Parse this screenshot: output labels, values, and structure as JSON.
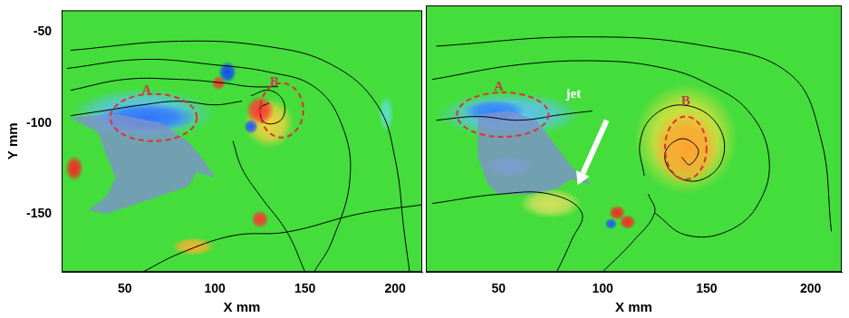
{
  "chart_data": [
    {
      "type": "streamline",
      "x_label": "X mm",
      "y_label": "Y mm",
      "xlim": [
        15,
        215
      ],
      "ylim": [
        -182,
        -38
      ],
      "xticks": [
        50,
        100,
        150,
        200
      ],
      "yticks": [
        -50,
        -100,
        -150
      ],
      "grid": false,
      "contours": [
        {
          "x": 60,
          "y": -95,
          "rx": 40,
          "ry": 14,
          "color": "#60c0ff"
        },
        {
          "x": 62,
          "y": -97,
          "rx": 28,
          "ry": 8,
          "color": "#3070ff"
        },
        {
          "x": 22,
          "y": -125,
          "rx": 5,
          "ry": 7,
          "color": "#ff2020"
        },
        {
          "x": 107,
          "y": -72,
          "rx": 5,
          "ry": 6,
          "color": "#1040ff"
        },
        {
          "x": 102,
          "y": -78,
          "rx": 4,
          "ry": 4,
          "color": "#ff3030"
        },
        {
          "x": 130,
          "y": -100,
          "rx": 14,
          "ry": 14,
          "color": "#ffd040"
        },
        {
          "x": 125,
          "y": -93,
          "rx": 8,
          "ry": 8,
          "color": "#ff3030"
        },
        {
          "x": 120,
          "y": -102,
          "rx": 4,
          "ry": 4,
          "color": "#2050ff"
        },
        {
          "x": 125,
          "y": -153,
          "rx": 5,
          "ry": 5,
          "color": "#ff3030"
        },
        {
          "x": 88,
          "y": -168,
          "rx": 12,
          "ry": 5,
          "color": "#ffb030"
        },
        {
          "x": 195,
          "y": -95,
          "rx": 4,
          "ry": 10,
          "color": "#60e0d0"
        }
      ],
      "streamlines": [
        [
          [
            20,
            -96
          ],
          [
            40,
            -93
          ],
          [
            60,
            -90
          ],
          [
            80,
            -88
          ],
          [
            100,
            -90
          ],
          [
            115,
            -88
          ]
        ],
        [
          [
            20,
            -82
          ],
          [
            50,
            -76
          ],
          [
            80,
            -76
          ],
          [
            105,
            -78
          ],
          [
            120,
            -80
          ],
          [
            135,
            -80
          ]
        ],
        [
          [
            18,
            -70
          ],
          [
            60,
            -65
          ],
          [
            100,
            -68
          ],
          [
            130,
            -72
          ],
          [
            155,
            -80
          ],
          [
            170,
            -100
          ],
          [
            175,
            -130
          ],
          [
            165,
            -165
          ],
          [
            155,
            -182
          ]
        ],
        [
          [
            20,
            -60
          ],
          [
            80,
            -55
          ],
          [
            130,
            -58
          ],
          [
            165,
            -68
          ],
          [
            190,
            -90
          ],
          [
            200,
            -120
          ],
          [
            205,
            -160
          ],
          [
            208,
            -182
          ]
        ],
        [
          [
            120,
            -85
          ],
          [
            130,
            -82
          ],
          [
            138,
            -88
          ],
          [
            137,
            -98
          ],
          [
            128,
            -100
          ],
          [
            125,
            -92
          ],
          [
            130,
            -89
          ]
        ],
        [
          [
            110,
            -110
          ],
          [
            115,
            -125
          ],
          [
            125,
            -140
          ],
          [
            140,
            -160
          ],
          [
            150,
            -182
          ]
        ],
        [
          [
            60,
            -182
          ],
          [
            80,
            -172
          ],
          [
            110,
            -162
          ],
          [
            140,
            -160
          ],
          [
            180,
            -150
          ],
          [
            215,
            -145
          ]
        ]
      ],
      "regions": [
        {
          "x": 66,
          "y": -97,
          "rx": 24,
          "ry": 13,
          "color": "#e03030",
          "line_style": "dashed"
        },
        {
          "x": 137,
          "y": -93,
          "rx": 12,
          "ry": 15,
          "color": "#e03030",
          "line_style": "dashed"
        }
      ],
      "annotations": [
        {
          "text": "A",
          "x": 62,
          "y": -82,
          "color": "#c04040"
        },
        {
          "text": "B",
          "x": 133,
          "y": -78,
          "color": "#c04040"
        }
      ]
    },
    {
      "type": "streamline",
      "x_label": "X mm",
      "xlim": [
        15,
        215
      ],
      "ylim": [
        -182,
        -38
      ],
      "xticks": [
        50,
        100,
        150,
        200
      ],
      "yticks": [
        -50,
        -100,
        -150
      ],
      "grid": false,
      "tick_labels": "x",
      "contours": [
        {
          "x": 55,
          "y": -97,
          "rx": 35,
          "ry": 12,
          "color": "#60c0ff"
        },
        {
          "x": 48,
          "y": -95,
          "rx": 15,
          "ry": 6,
          "color": "#3080ff"
        },
        {
          "x": 140,
          "y": -110,
          "rx": 25,
          "ry": 30,
          "color": "#f0e040"
        },
        {
          "x": 140,
          "y": -115,
          "rx": 16,
          "ry": 20,
          "color": "#ffa030"
        },
        {
          "x": 75,
          "y": -145,
          "rx": 15,
          "ry": 8,
          "color": "#e0e060"
        },
        {
          "x": 55,
          "y": -125,
          "rx": 12,
          "ry": 6,
          "color": "#70d0e0"
        },
        {
          "x": 107,
          "y": -150,
          "rx": 4,
          "ry": 4,
          "color": "#ff2020"
        },
        {
          "x": 112,
          "y": -155,
          "rx": 4,
          "ry": 4,
          "color": "#ff2020"
        },
        {
          "x": 104,
          "y": -156,
          "rx": 3,
          "ry": 3,
          "color": "#2050ff"
        }
      ],
      "streamlines": [
        [
          [
            20,
            -100
          ],
          [
            40,
            -98
          ],
          [
            60,
            -100
          ],
          [
            80,
            -97
          ],
          [
            95,
            -95
          ]
        ],
        [
          [
            18,
            -78
          ],
          [
            60,
            -70
          ],
          [
            100,
            -68
          ],
          [
            130,
            -72
          ],
          [
            150,
            -80
          ],
          [
            170,
            -95
          ],
          [
            180,
            -120
          ],
          [
            175,
            -145
          ],
          [
            160,
            -160
          ],
          [
            140,
            -162
          ],
          [
            125,
            -150
          ]
        ],
        [
          [
            120,
            -130
          ],
          [
            118,
            -112
          ],
          [
            125,
            -97
          ],
          [
            140,
            -92
          ],
          [
            155,
            -102
          ],
          [
            158,
            -120
          ],
          [
            148,
            -132
          ],
          [
            135,
            -130
          ],
          [
            130,
            -118
          ],
          [
            138,
            -110
          ],
          [
            146,
            -116
          ],
          [
            142,
            -124
          ],
          [
            138,
            -120
          ]
        ],
        [
          [
            18,
            -145
          ],
          [
            50,
            -140
          ],
          [
            75,
            -140
          ],
          [
            90,
            -150
          ],
          [
            85,
            -165
          ],
          [
            78,
            -182
          ]
        ],
        [
          [
            20,
            -60
          ],
          [
            90,
            -55
          ],
          [
            150,
            -60
          ],
          [
            190,
            -75
          ],
          [
            205,
            -110
          ],
          [
            210,
            -160
          ]
        ],
        [
          [
            100,
            -182
          ],
          [
            115,
            -165
          ],
          [
            125,
            -150
          ],
          [
            122,
            -140
          ]
        ]
      ],
      "regions": [
        {
          "x": 52,
          "y": -97,
          "rx": 22,
          "ry": 12,
          "color": "#e03030",
          "line_style": "dashed"
        },
        {
          "x": 140,
          "y": -115,
          "rx": 10,
          "ry": 17,
          "color": "#e03030",
          "line_style": "dashed"
        }
      ],
      "arrows": [
        {
          "from": [
            102,
            -100
          ],
          "to": [
            88,
            -135
          ],
          "color": "#ffffff"
        }
      ],
      "annotations": [
        {
          "text": "A",
          "x": 50,
          "y": -82,
          "color": "#c04040"
        },
        {
          "text": "jet",
          "x": 86,
          "y": -86,
          "color": "#ffffff"
        },
        {
          "text": "B",
          "x": 140,
          "y": -90,
          "color": "#c04040"
        }
      ]
    }
  ]
}
